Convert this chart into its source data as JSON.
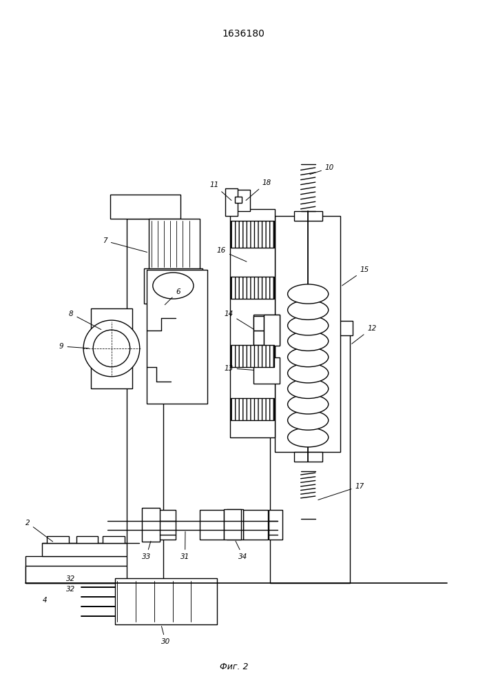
{
  "title": "1636180",
  "caption": "Фиг. 2",
  "bg_color": "#ffffff",
  "line_color": "#000000",
  "line_width": 1.0,
  "fig_width": 7.07,
  "fig_height": 10.0,
  "dpi": 100
}
